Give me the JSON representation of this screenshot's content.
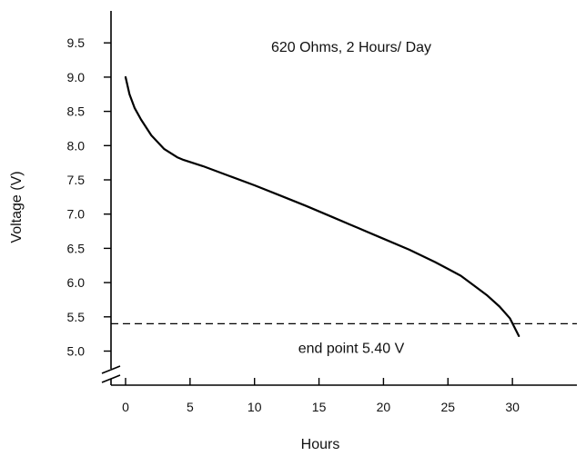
{
  "chart_data": {
    "type": "line",
    "title": "",
    "xlabel": "Hours",
    "ylabel": "Voltage (V)",
    "xlim": [
      0,
      35
    ],
    "ylim": [
      4.7,
      10.2
    ],
    "x_ticks": [
      0,
      5,
      10,
      15,
      20,
      25,
      30
    ],
    "x_tick_labels": [
      "0",
      "5",
      "10",
      "15",
      "20",
      "25",
      "30"
    ],
    "y_ticks": [
      5.0,
      5.5,
      6.0,
      6.5,
      7.0,
      7.5,
      8.0,
      8.5,
      9.0,
      9.5
    ],
    "y_tick_labels": [
      "5.0",
      "5.5",
      "6.0",
      "6.5",
      "7.0",
      "7.5",
      "8.0",
      "8.5",
      "9.0",
      "9.5"
    ],
    "y_axis_break": true,
    "grid": false,
    "series": [
      {
        "color": "#000000",
        "points": [
          [
            0,
            9.0
          ],
          [
            0.3,
            8.75
          ],
          [
            0.7,
            8.55
          ],
          [
            1.2,
            8.38
          ],
          [
            2.0,
            8.15
          ],
          [
            3.0,
            7.95
          ],
          [
            4.0,
            7.83
          ],
          [
            4.5,
            7.79
          ],
          [
            6,
            7.7
          ],
          [
            8,
            7.56
          ],
          [
            10,
            7.42
          ],
          [
            12,
            7.27
          ],
          [
            14,
            7.12
          ],
          [
            16,
            6.96
          ],
          [
            18,
            6.8
          ],
          [
            20,
            6.64
          ],
          [
            22,
            6.48
          ],
          [
            24,
            6.3
          ],
          [
            25,
            6.2
          ],
          [
            26,
            6.1
          ],
          [
            27,
            5.96
          ],
          [
            28,
            5.82
          ],
          [
            29,
            5.65
          ],
          [
            29.8,
            5.48
          ],
          [
            30.5,
            5.22
          ]
        ]
      }
    ],
    "reference_line": {
      "y": 5.4,
      "style": "dashed",
      "color": "#000000"
    },
    "annotations": [
      {
        "text": "620 Ohms, 2 Hours/ Day",
        "x": 17.5,
        "y": 9.45
      },
      {
        "text": "end point 5.40 V",
        "x": 17.5,
        "y": 5.05
      }
    ]
  }
}
